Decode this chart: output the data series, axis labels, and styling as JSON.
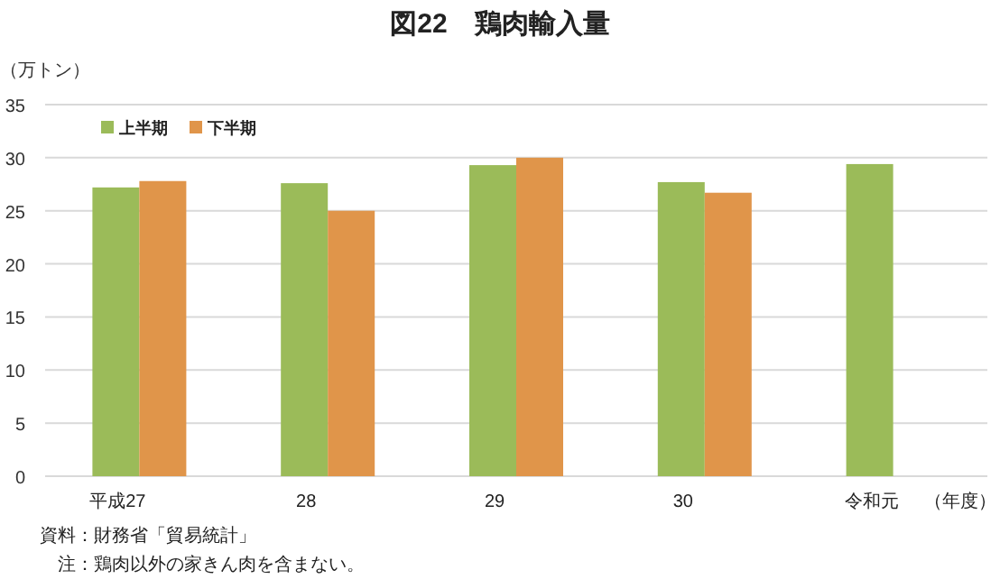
{
  "chart_data": {
    "type": "bar",
    "title": "図22　鶏肉輸入量",
    "ylabel": "（万トン）",
    "xlabel": "（年度）",
    "categories": [
      "平成27",
      "28",
      "29",
      "30",
      "令和元"
    ],
    "series": [
      {
        "name": "上半期",
        "color": "#9bbb59",
        "values": [
          27.2,
          27.6,
          29.3,
          27.7,
          29.4
        ]
      },
      {
        "name": "下半期",
        "color": "#e0954a",
        "values": [
          27.8,
          25.0,
          30.0,
          26.7,
          null
        ]
      }
    ],
    "ylim": [
      0,
      35
    ],
    "yticks": [
      0,
      5,
      10,
      15,
      20,
      25,
      30,
      35
    ],
    "grid": "y",
    "legend": "top left",
    "annotations": [
      "資料：財務省「貿易統計」",
      "　注：鶏肉以外の家きん肉を含まない。"
    ]
  }
}
